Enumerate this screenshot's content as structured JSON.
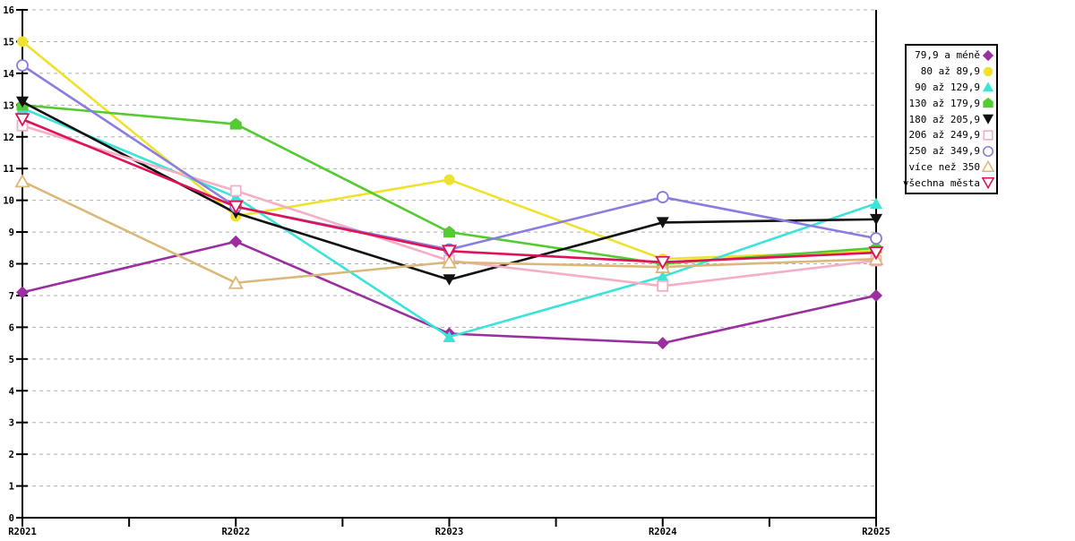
{
  "chart_data": {
    "type": "line",
    "title": "",
    "xlabel": "",
    "ylabel": "",
    "categories": [
      "R2021",
      "R2022",
      "R2023",
      "R2024",
      "R2025"
    ],
    "ylim": [
      0,
      16
    ],
    "y_ticks": [
      0,
      1,
      2,
      3,
      4,
      5,
      6,
      7,
      8,
      9,
      10,
      11,
      12,
      13,
      14,
      15,
      16
    ],
    "grid": "horizontal-dashed",
    "legend_position": "right",
    "series": [
      {
        "name": "79,9 a méně",
        "color": "#9B2FA0",
        "marker": "diamond",
        "fill": "solid",
        "values": [
          7.1,
          8.7,
          5.8,
          5.5,
          7.0
        ]
      },
      {
        "name": "80 až 89,9",
        "color": "#EFE22E",
        "marker": "circle",
        "fill": "solid",
        "values": [
          15.0,
          9.5,
          10.65,
          8.15,
          8.4
        ]
      },
      {
        "name": "90 až 129,9",
        "color": "#3BE3D8",
        "marker": "triangle-up",
        "fill": "solid",
        "values": [
          12.9,
          10.1,
          5.7,
          7.6,
          9.9
        ]
      },
      {
        "name": "130 až 179,9",
        "color": "#55CB32",
        "marker": "house",
        "fill": "solid",
        "values": [
          13.0,
          12.4,
          9.0,
          8.0,
          8.5
        ]
      },
      {
        "name": "180 až 205,9",
        "color": "#111111",
        "marker": "triangle-down",
        "fill": "solid",
        "values": [
          13.1,
          9.6,
          7.5,
          9.3,
          9.4
        ]
      },
      {
        "name": "206 až 249,9",
        "color": "#F5AFC4",
        "marker": "square",
        "fill": "open",
        "values": [
          12.35,
          10.3,
          8.1,
          7.3,
          8.1
        ]
      },
      {
        "name": "250 až 349,9",
        "color": "#8A7CE0",
        "marker": "circle",
        "fill": "open",
        "values": [
          14.25,
          9.8,
          8.45,
          10.1,
          8.8
        ]
      },
      {
        "name": "více než 350",
        "color": "#DBB879",
        "marker": "triangle-up",
        "fill": "open",
        "values": [
          10.6,
          7.4,
          8.05,
          7.9,
          8.15
        ]
      },
      {
        "name": "všechna města",
        "color": "#DE1256",
        "marker": "triangle-down",
        "fill": "open",
        "values": [
          12.55,
          9.8,
          8.4,
          8.05,
          8.35
        ]
      }
    ],
    "colors": {
      "grid": "#b0b0b0",
      "axis": "#000000",
      "background": "#ffffff"
    }
  }
}
